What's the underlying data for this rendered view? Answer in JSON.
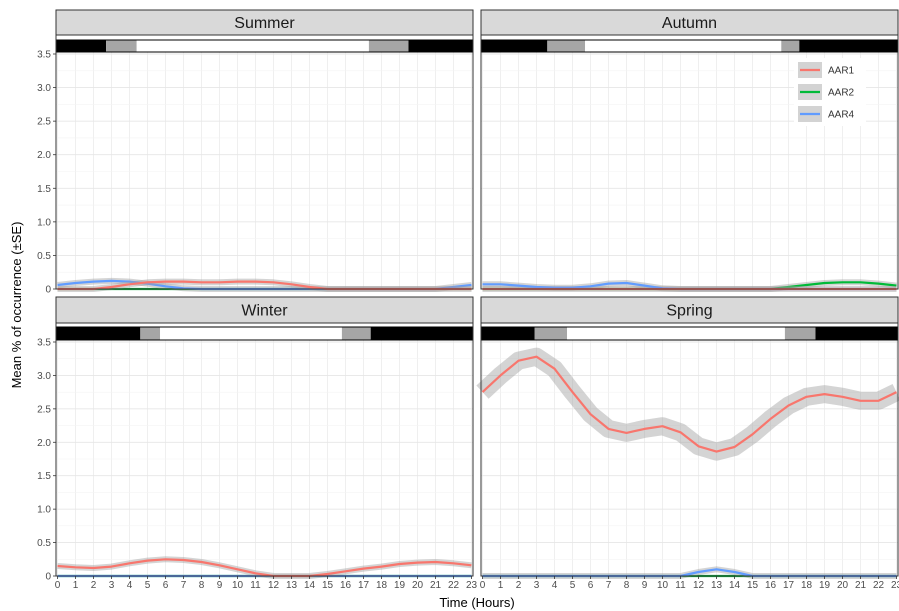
{
  "chart_data": {
    "type": "line",
    "xlabel": "Time (Hours)",
    "ylabel": "Mean % of occurrence (±SE)",
    "xlim": [
      0,
      23
    ],
    "ylim": [
      0,
      3.5
    ],
    "x_ticks": [
      0,
      1,
      2,
      3,
      4,
      5,
      6,
      7,
      8,
      9,
      10,
      11,
      12,
      13,
      14,
      15,
      16,
      17,
      18,
      19,
      20,
      21,
      22,
      23
    ],
    "y_ticks": [
      "0",
      "0.5",
      "1.0",
      "1.5",
      "2.0",
      "2.5",
      "3.0",
      "3.5"
    ],
    "grid": true,
    "legend": {
      "placement": "top-right of Autumn panel",
      "entries": [
        {
          "name": "AAR1",
          "color": "#f8766d"
        },
        {
          "name": "AAR2",
          "color": "#00ba38"
        },
        {
          "name": "AAR4",
          "color": "#619cff"
        }
      ]
    },
    "panels": [
      {
        "title": "Summer",
        "daylight_bar": [
          {
            "from": 0,
            "to": 2.7,
            "shade": "night"
          },
          {
            "from": 2.7,
            "to": 4.4,
            "shade": "twilight"
          },
          {
            "from": 4.4,
            "to": 17.3,
            "shade": "day"
          },
          {
            "from": 17.3,
            "to": 19.5,
            "shade": "twilight"
          },
          {
            "from": 19.5,
            "to": 23,
            "shade": "night"
          }
        ],
        "series": [
          {
            "name": "AAR1",
            "points": [
              [
                0,
                0
              ],
              [
                2,
                0
              ],
              [
                3,
                0.03
              ],
              [
                4,
                0.07
              ],
              [
                5,
                0.1
              ],
              [
                6,
                0.11
              ],
              [
                7,
                0.11
              ],
              [
                8,
                0.1
              ],
              [
                9,
                0.1
              ],
              [
                10,
                0.11
              ],
              [
                11,
                0.11
              ],
              [
                12,
                0.1
              ],
              [
                13,
                0.07
              ],
              [
                14,
                0.03
              ],
              [
                15,
                0
              ],
              [
                23,
                0
              ]
            ]
          },
          {
            "name": "AAR2",
            "points": [
              [
                0,
                0
              ],
              [
                23,
                0
              ]
            ]
          },
          {
            "name": "AAR4",
            "points": [
              [
                0,
                0.06
              ],
              [
                1,
                0.09
              ],
              [
                2,
                0.11
              ],
              [
                3,
                0.12
              ],
              [
                4,
                0.11
              ],
              [
                5,
                0.08
              ],
              [
                6,
                0.04
              ],
              [
                7,
                0.01
              ],
              [
                8,
                0
              ],
              [
                21,
                0
              ],
              [
                22,
                0.03
              ],
              [
                23,
                0.06
              ]
            ]
          }
        ]
      },
      {
        "title": "Autumn",
        "daylight_bar": [
          {
            "from": 0,
            "to": 3.6,
            "shade": "night"
          },
          {
            "from": 3.6,
            "to": 5.7,
            "shade": "twilight"
          },
          {
            "from": 5.7,
            "to": 16.6,
            "shade": "day"
          },
          {
            "from": 16.6,
            "to": 17.6,
            "shade": "twilight"
          },
          {
            "from": 17.6,
            "to": 23,
            "shade": "night"
          }
        ],
        "series": [
          {
            "name": "AAR1",
            "points": [
              [
                0,
                0
              ],
              [
                23,
                0
              ]
            ]
          },
          {
            "name": "AAR2",
            "points": [
              [
                0,
                0
              ],
              [
                16,
                0
              ],
              [
                17,
                0.03
              ],
              [
                18,
                0.06
              ],
              [
                19,
                0.09
              ],
              [
                20,
                0.1
              ],
              [
                21,
                0.1
              ],
              [
                22,
                0.08
              ],
              [
                23,
                0.05
              ]
            ]
          },
          {
            "name": "AAR4",
            "points": [
              [
                0,
                0.07
              ],
              [
                1,
                0.07
              ],
              [
                2,
                0.05
              ],
              [
                3,
                0.03
              ],
              [
                4,
                0.02
              ],
              [
                5,
                0.02
              ],
              [
                6,
                0.04
              ],
              [
                7,
                0.08
              ],
              [
                8,
                0.09
              ],
              [
                9,
                0.05
              ],
              [
                10,
                0.01
              ],
              [
                11,
                0
              ],
              [
                23,
                0
              ]
            ]
          }
        ]
      },
      {
        "title": "Winter",
        "daylight_bar": [
          {
            "from": 0,
            "to": 4.6,
            "shade": "night"
          },
          {
            "from": 4.6,
            "to": 5.7,
            "shade": "twilight"
          },
          {
            "from": 5.7,
            "to": 15.8,
            "shade": "day"
          },
          {
            "from": 15.8,
            "to": 17.4,
            "shade": "twilight"
          },
          {
            "from": 17.4,
            "to": 23,
            "shade": "night"
          }
        ],
        "series": [
          {
            "name": "AAR1",
            "points": [
              [
                0,
                0.15
              ],
              [
                1,
                0.13
              ],
              [
                2,
                0.12
              ],
              [
                3,
                0.14
              ],
              [
                4,
                0.19
              ],
              [
                5,
                0.23
              ],
              [
                6,
                0.25
              ],
              [
                7,
                0.24
              ],
              [
                8,
                0.21
              ],
              [
                9,
                0.16
              ],
              [
                10,
                0.1
              ],
              [
                11,
                0.04
              ],
              [
                12,
                0
              ],
              [
                14,
                0
              ],
              [
                15,
                0.03
              ],
              [
                16,
                0.07
              ],
              [
                17,
                0.11
              ],
              [
                18,
                0.14
              ],
              [
                19,
                0.18
              ],
              [
                20,
                0.2
              ],
              [
                21,
                0.21
              ],
              [
                22,
                0.19
              ],
              [
                23,
                0.16
              ]
            ]
          },
          {
            "name": "AAR2",
            "points": [
              [
                0,
                0
              ],
              [
                23,
                0
              ]
            ]
          },
          {
            "name": "AAR4",
            "points": [
              [
                0,
                0
              ],
              [
                23,
                0
              ]
            ]
          }
        ]
      },
      {
        "title": "Spring",
        "daylight_bar": [
          {
            "from": 0,
            "to": 2.9,
            "shade": "night"
          },
          {
            "from": 2.9,
            "to": 4.7,
            "shade": "twilight"
          },
          {
            "from": 4.7,
            "to": 16.8,
            "shade": "day"
          },
          {
            "from": 16.8,
            "to": 18.5,
            "shade": "twilight"
          },
          {
            "from": 18.5,
            "to": 23,
            "shade": "night"
          }
        ],
        "series": [
          {
            "name": "AAR1",
            "points": [
              [
                0,
                2.75
              ],
              [
                1,
                3.0
              ],
              [
                2,
                3.22
              ],
              [
                3,
                3.28
              ],
              [
                4,
                3.1
              ],
              [
                5,
                2.75
              ],
              [
                6,
                2.42
              ],
              [
                7,
                2.2
              ],
              [
                8,
                2.14
              ],
              [
                9,
                2.2
              ],
              [
                10,
                2.24
              ],
              [
                11,
                2.15
              ],
              [
                12,
                1.94
              ],
              [
                13,
                1.86
              ],
              [
                14,
                1.93
              ],
              [
                15,
                2.12
              ],
              [
                16,
                2.35
              ],
              [
                17,
                2.55
              ],
              [
                18,
                2.68
              ],
              [
                19,
                2.72
              ],
              [
                20,
                2.68
              ],
              [
                21,
                2.62
              ],
              [
                22,
                2.62
              ],
              [
                23,
                2.75
              ]
            ]
          },
          {
            "name": "AAR2",
            "points": [
              [
                0,
                0
              ],
              [
                23,
                0
              ]
            ]
          },
          {
            "name": "AAR4",
            "points": [
              [
                0,
                0
              ],
              [
                11,
                0
              ],
              [
                12,
                0.06
              ],
              [
                13,
                0.1
              ],
              [
                14,
                0.06
              ],
              [
                15,
                0
              ],
              [
                23,
                0
              ]
            ]
          }
        ]
      }
    ]
  }
}
